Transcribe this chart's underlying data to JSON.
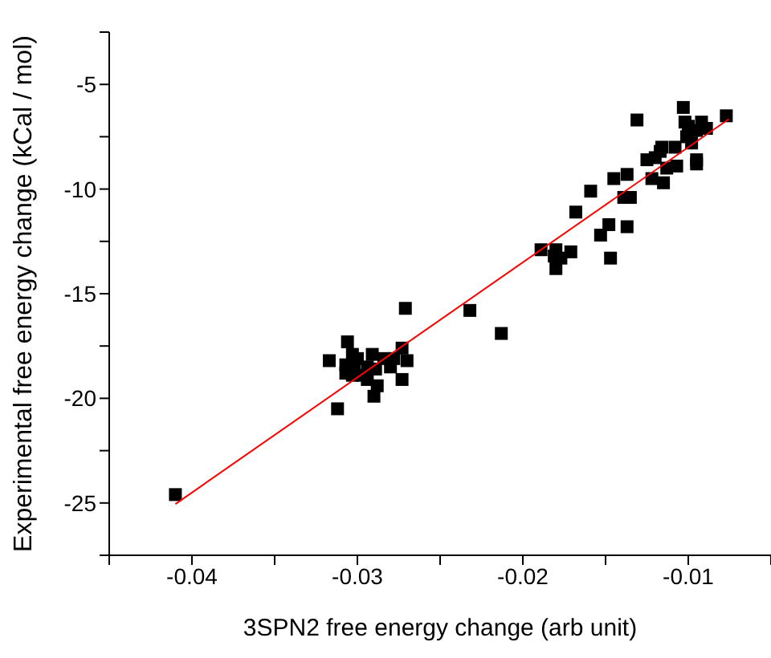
{
  "chart_data": {
    "type": "scatter",
    "xlabel": "3SPN2 free energy change (arb unit)",
    "ylabel": "Experimental free energy change (kCal / mol)",
    "xlim": [
      -0.045,
      -0.005
    ],
    "xticks": [
      {
        "value": -0.045,
        "label": null
      },
      -0.04,
      {
        "value": -0.035,
        "label": null
      },
      -0.03,
      {
        "value": -0.025,
        "label": null
      },
      -0.02,
      {
        "value": -0.015,
        "label": null
      },
      -0.01,
      {
        "value": -0.005,
        "label": null
      }
    ],
    "ylim": [
      -27.5,
      -2.5
    ],
    "yticks": [
      {
        "value": -27.5,
        "label": null
      },
      -25,
      {
        "value": -22.5,
        "label": null
      },
      -20,
      {
        "value": -17.5,
        "label": null
      },
      -15,
      {
        "value": -12.5,
        "label": null
      },
      -10,
      {
        "value": -7.5,
        "label": null
      },
      -5,
      {
        "value": -2.5,
        "label": null
      }
    ],
    "grid": false,
    "legend": false,
    "marker": "square",
    "series": [
      {
        "type": "scatter",
        "color": "#000000",
        "x": [
          -0.041,
          -0.0317,
          -0.0312,
          -0.0306,
          -0.0307,
          -0.0303,
          -0.0302,
          -0.03,
          -0.0297,
          -0.0294,
          -0.0291,
          -0.0289,
          -0.029,
          -0.0288,
          -0.0284,
          -0.028,
          -0.0278,
          -0.0273,
          -0.0271,
          -0.0273,
          -0.027,
          -0.0303,
          -0.0294,
          -0.0307,
          -0.0232,
          -0.0213,
          -0.0189,
          -0.018,
          -0.018,
          -0.0177,
          -0.0171,
          -0.0181,
          -0.0168,
          -0.0159,
          -0.0153,
          -0.0148,
          -0.0147,
          -0.0145,
          -0.0139,
          -0.0137,
          -0.0137,
          -0.0135,
          -0.0131,
          -0.0125,
          -0.0122,
          -0.012,
          -0.0117,
          -0.0116,
          -0.0115,
          -0.0113,
          -0.0108,
          -0.0107,
          -0.0103,
          -0.0102,
          -0.0101,
          -0.0098,
          -0.0095,
          -0.0095,
          -0.0095,
          -0.0092,
          -0.0089,
          -0.0077,
          -0.01
        ],
        "values": [
          -24.6,
          -18.2,
          -20.5,
          -17.3,
          -18.8,
          -17.9,
          -18.4,
          -18.1,
          -18.9,
          -19.1,
          -17.9,
          -18.6,
          -19.9,
          -19.4,
          -18.1,
          -18.5,
          -18.1,
          -17.6,
          -15.7,
          -19.1,
          -18.2,
          -18.9,
          -18.5,
          -18.4,
          -15.8,
          -16.9,
          -12.9,
          -12.9,
          -13.8,
          -13.3,
          -13.0,
          -13.2,
          -11.1,
          -10.1,
          -12.2,
          -11.7,
          -13.3,
          -9.5,
          -10.4,
          -9.3,
          -11.8,
          -10.4,
          -6.7,
          -8.6,
          -9.5,
          -8.5,
          -8.2,
          -8.0,
          -9.7,
          -9.0,
          -8.0,
          -8.9,
          -6.1,
          -6.8,
          -7.5,
          -7.8,
          -7.2,
          -8.6,
          -8.8,
          -6.8,
          -7.1,
          -6.5,
          -7.0
        ]
      },
      {
        "type": "line",
        "color": "#ff0000",
        "marker": "none",
        "line_style": "solid",
        "x": [
          -0.041,
          -0.00756
        ],
        "values": [
          -25.05,
          -6.66
        ]
      }
    ]
  }
}
